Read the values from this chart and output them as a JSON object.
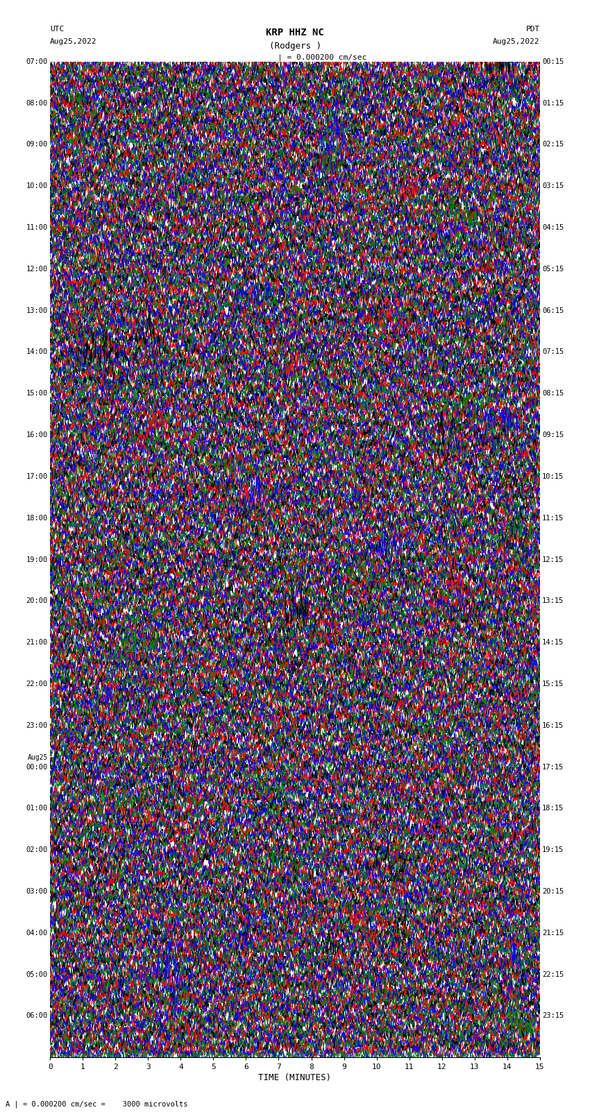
{
  "title_line1": "KRP HHZ NC",
  "title_line2": "(Rodgers )",
  "scale_label": "| = 0.000200 cm/sec",
  "left_header": "UTC",
  "left_date": "Aug25,2022",
  "right_header": "PDT",
  "right_date": "Aug25,2022",
  "bottom_annotation": "A | = 0.000200 cm/sec =    3000 microvolts",
  "xlabel": "TIME (MINUTES)",
  "xmin": 0,
  "xmax": 15,
  "xticks": [
    0,
    1,
    2,
    3,
    4,
    5,
    6,
    7,
    8,
    9,
    10,
    11,
    12,
    13,
    14,
    15
  ],
  "background_color": "#ffffff",
  "trace_colors": [
    "black",
    "red",
    "blue",
    "green"
  ],
  "utc_times_labeled": {
    "0": "07:00",
    "4": "08:00",
    "8": "09:00",
    "12": "10:00",
    "16": "11:00",
    "20": "12:00",
    "24": "13:00",
    "28": "14:00",
    "32": "15:00",
    "36": "16:00",
    "40": "17:00",
    "44": "18:00",
    "48": "19:00",
    "52": "20:00",
    "56": "21:00",
    "60": "22:00",
    "64": "23:00",
    "68": "00:00",
    "72": "01:00",
    "76": "02:00",
    "80": "03:00",
    "84": "04:00",
    "88": "05:00",
    "92": "06:00"
  },
  "utc_date_change_row": 68,
  "pdt_times_labeled": {
    "0": "00:15",
    "4": "01:15",
    "8": "02:15",
    "12": "03:15",
    "16": "04:15",
    "20": "05:15",
    "24": "06:15",
    "28": "07:15",
    "32": "08:15",
    "36": "09:15",
    "40": "10:15",
    "44": "11:15",
    "48": "12:15",
    "52": "13:15",
    "56": "14:15",
    "60": "15:15",
    "64": "16:15",
    "68": "17:15",
    "72": "18:15",
    "76": "19:15",
    "80": "20:15",
    "84": "21:15",
    "88": "22:15",
    "92": "23:15"
  },
  "n_rows": 96,
  "traces_per_row": 4,
  "fig_width": 8.5,
  "fig_height": 16.13,
  "dpi": 100,
  "trace_linewidth": 0.4,
  "trace_amplitude": 0.38,
  "n_points": 3000
}
